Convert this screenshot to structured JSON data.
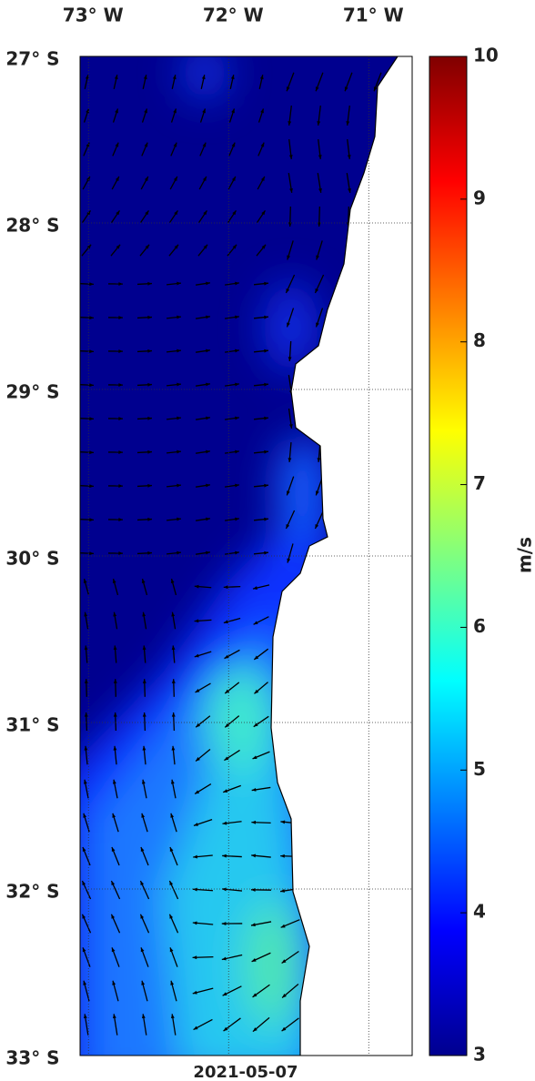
{
  "map": {
    "lon_ticks": [
      {
        "value": -73,
        "label": "73° W"
      },
      {
        "value": -72,
        "label": "72° W"
      },
      {
        "value": -71,
        "label": "71° W"
      }
    ],
    "lat_ticks": [
      {
        "value": -27,
        "label": "27° S"
      },
      {
        "value": -28,
        "label": "28° S"
      },
      {
        "value": -29,
        "label": "29° S"
      },
      {
        "value": -30,
        "label": "30° S"
      },
      {
        "value": -31,
        "label": "31° S"
      },
      {
        "value": -32,
        "label": "32° S"
      },
      {
        "value": -33,
        "label": "33° S"
      }
    ],
    "xlim": [
      -73.06,
      -70.69
    ],
    "ylim": [
      -33,
      -27
    ],
    "date": "2021-05-07",
    "colorbar": {
      "lim": [
        3,
        10
      ],
      "ticks": [
        3,
        4,
        5,
        6,
        7,
        8,
        9,
        10
      ],
      "label": "m/s"
    }
  }
}
